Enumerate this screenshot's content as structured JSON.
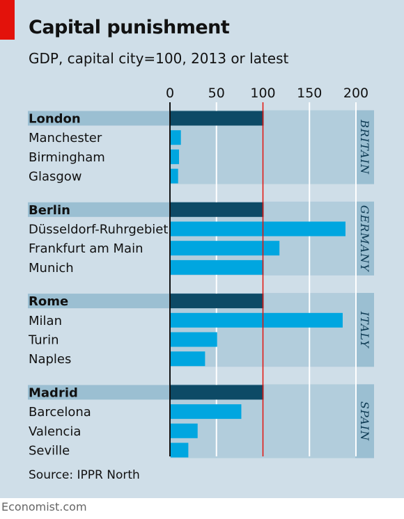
{
  "title": "Capital punishment",
  "subtitle": "GDP, capital city=100, 2013 or latest",
  "source": "Source: IPPR North",
  "footer": "Economist.com",
  "colors": {
    "background": "#cfdee8",
    "capital_bar": "#0d4a66",
    "city_bar": "#00a6e0",
    "band": "#9bbfd2",
    "reference_line": "#e3120b",
    "tag": "#e3120b"
  },
  "chart_data": {
    "type": "bar",
    "orientation": "horizontal",
    "xlim": [
      0,
      200
    ],
    "xticks": [
      0,
      50,
      100,
      150,
      200
    ],
    "reference_line": 100,
    "grid": true,
    "groups": [
      {
        "name": "BRITAIN",
        "items": [
          {
            "label": "London",
            "value": 100,
            "capital": true
          },
          {
            "label": "Manchester",
            "value": 11,
            "capital": false
          },
          {
            "label": "Birmingham",
            "value": 9,
            "capital": false
          },
          {
            "label": "Glasgow",
            "value": 8,
            "capital": false
          }
        ]
      },
      {
        "name": "GERMANY",
        "items": [
          {
            "label": "Berlin",
            "value": 100,
            "capital": true
          },
          {
            "label": "Düsseldorf-Ruhrgebiet",
            "value": 188,
            "capital": false
          },
          {
            "label": "Frankfurt am Main",
            "value": 117,
            "capital": false
          },
          {
            "label": "Munich",
            "value": 100,
            "capital": false
          }
        ]
      },
      {
        "name": "ITALY",
        "items": [
          {
            "label": "Rome",
            "value": 100,
            "capital": true
          },
          {
            "label": "Milan",
            "value": 185,
            "capital": false
          },
          {
            "label": "Turin",
            "value": 50,
            "capital": false
          },
          {
            "label": "Naples",
            "value": 37,
            "capital": false
          }
        ]
      },
      {
        "name": "SPAIN",
        "items": [
          {
            "label": "Madrid",
            "value": 100,
            "capital": true
          },
          {
            "label": "Barcelona",
            "value": 76,
            "capital": false
          },
          {
            "label": "Valencia",
            "value": 29,
            "capital": false
          },
          {
            "label": "Seville",
            "value": 19,
            "capital": false
          }
        ]
      }
    ]
  }
}
